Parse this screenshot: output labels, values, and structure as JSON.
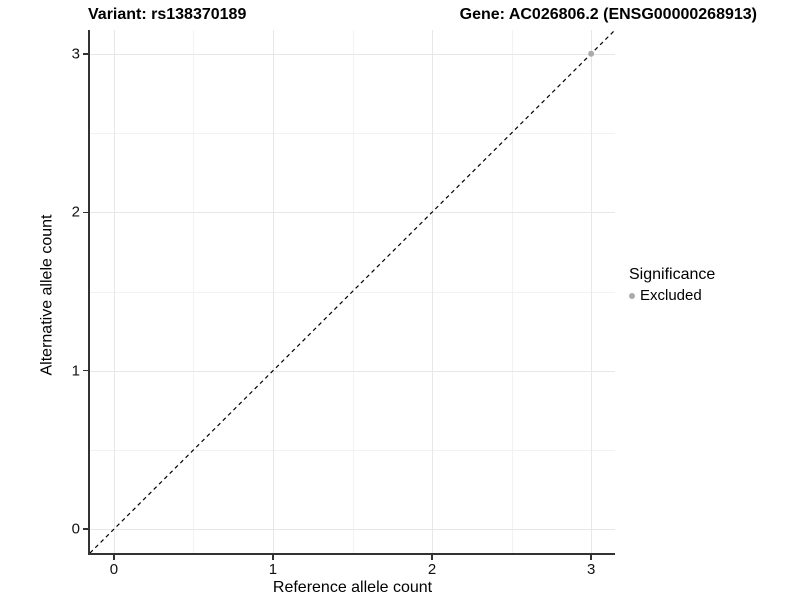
{
  "figure": {
    "title_left": "Variant: rs138370189",
    "title_right": "Gene: AC026806.2 (ENSG00000268913)"
  },
  "chart_data": {
    "type": "scatter",
    "title_left": "Variant: rs138370189",
    "title_right": "Gene: AC026806.2 (ENSG00000268913)",
    "xlabel": "Reference allele count",
    "ylabel": "Alternative allele count",
    "xlim": [
      -0.15,
      3.15
    ],
    "ylim": [
      -0.15,
      3.15
    ],
    "x_ticks": [
      0,
      1,
      2,
      3
    ],
    "y_ticks": [
      0,
      1,
      2,
      3
    ],
    "grid": {
      "major": true,
      "minor": true
    },
    "identity_line": {
      "style": "dashed",
      "color": "#000000",
      "from": [
        -0.15,
        -0.15
      ],
      "to": [
        3.15,
        3.15
      ]
    },
    "series": [
      {
        "name": "Excluded",
        "color": "#aaaaaa",
        "points": [
          [
            3,
            3
          ]
        ]
      }
    ],
    "legend": {
      "title": "Significance",
      "position": "right",
      "items": [
        {
          "label": "Excluded",
          "color": "#aaaaaa"
        }
      ]
    }
  },
  "colors": {
    "background": "#ffffff",
    "grid_major": "#e7e7e7",
    "grid_minor": "#f2f2f2",
    "axis_line": "#333333",
    "point": "#aaaaaa",
    "text": "#000000"
  }
}
